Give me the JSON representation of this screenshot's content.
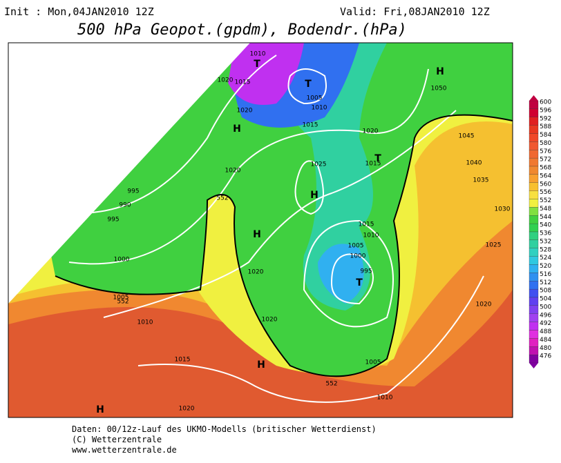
{
  "header": {
    "init": "Init : Mon,04JAN2010 12Z",
    "valid": "Valid: Fri,08JAN2010 12Z",
    "title": "500 hPa Geopot.(gpdm), Bodendr.(hPa)"
  },
  "map_labels": [
    "1010",
    "1020",
    "1015",
    "T",
    "T",
    "1005",
    "1010",
    "H",
    "1050",
    "1020",
    "H",
    "1015",
    "1020",
    "1045",
    "T",
    "1015",
    "1025",
    "1040",
    "1020",
    "H",
    "1035",
    "995",
    "990",
    "995",
    "552",
    "1030",
    "H",
    "1015",
    "1010",
    "1005",
    "1000",
    "1025",
    "995",
    "T",
    "1000",
    "1020",
    "1005",
    "552",
    "1020",
    "1010",
    "1020",
    "1015",
    "H",
    "1005",
    "552",
    "1010",
    "H",
    "1020"
  ],
  "colorbar": {
    "labels": [
      "600",
      "596",
      "592",
      "588",
      "584",
      "580",
      "576",
      "572",
      "568",
      "564",
      "560",
      "556",
      "552",
      "548",
      "544",
      "540",
      "536",
      "532",
      "528",
      "524",
      "520",
      "516",
      "512",
      "508",
      "504",
      "500",
      "496",
      "492",
      "488",
      "484",
      "480",
      "476"
    ],
    "colors": [
      "#c00040",
      "#d00030",
      "#e02020",
      "#e83820",
      "#f04828",
      "#f05830",
      "#f06830",
      "#f07830",
      "#f08830",
      "#f8a030",
      "#f8c030",
      "#f8e040",
      "#f0f040",
      "#80e040",
      "#40d040",
      "#30d050",
      "#30d080",
      "#30d0a0",
      "#30d0c0",
      "#30c8e0",
      "#30b0f0",
      "#3090f0",
      "#3070f0",
      "#4050f0",
      "#6040f0",
      "#8040f0",
      "#a040f0",
      "#c030f0",
      "#e030e0",
      "#e020c0",
      "#c010b0",
      "#8000a0"
    ]
  },
  "footer": [
    "Daten: 00/12z-Lauf des UKMO-Modells (britischer Wetterdienst)",
    "(C) Wetterzentrale",
    "www.wetterzentrale.de"
  ]
}
